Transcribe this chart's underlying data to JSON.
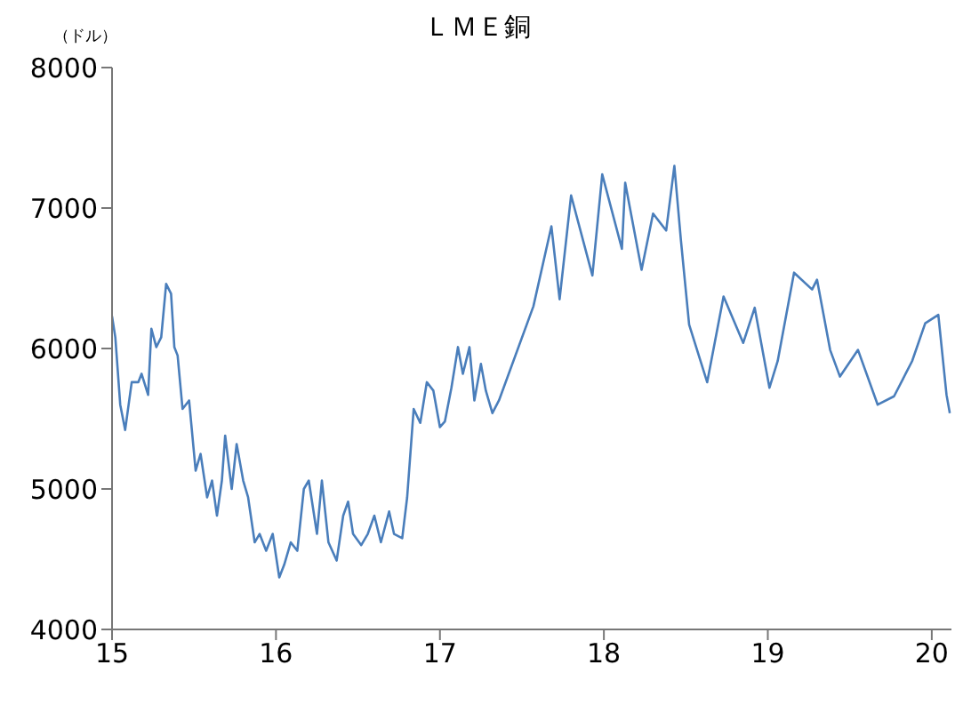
{
  "chart_data": {
    "type": "line",
    "title": "ＬＭＥ銅",
    "ylabel": "（ドル）",
    "x": [
      15.0,
      15.02,
      15.05,
      15.08,
      15.12,
      15.16,
      15.18,
      15.22,
      15.24,
      15.27,
      15.3,
      15.33,
      15.36,
      15.38,
      15.4,
      15.43,
      15.47,
      15.51,
      15.54,
      15.58,
      15.61,
      15.64,
      15.67,
      15.69,
      15.73,
      15.76,
      15.8,
      15.83,
      15.87,
      15.9,
      15.94,
      15.98,
      16.02,
      16.05,
      16.09,
      16.13,
      16.17,
      16.2,
      16.25,
      16.28,
      16.32,
      16.37,
      16.41,
      16.44,
      16.47,
      16.52,
      16.56,
      16.6,
      16.64,
      16.69,
      16.72,
      16.77,
      16.8,
      16.84,
      16.88,
      16.92,
      16.96,
      17.0,
      17.03,
      17.07,
      17.11,
      17.14,
      17.18,
      17.21,
      17.25,
      17.28,
      17.32,
      17.36,
      17.57,
      17.68,
      17.73,
      17.8,
      17.93,
      17.99,
      18.11,
      18.13,
      18.23,
      18.3,
      18.38,
      18.43,
      18.47,
      18.52,
      18.63,
      18.73,
      18.85,
      18.92,
      19.01,
      19.06,
      19.16,
      19.27,
      19.3,
      19.38,
      19.44,
      19.55,
      19.67,
      19.77,
      19.88,
      19.96,
      20.04,
      20.09,
      20.11
    ],
    "series": [
      {
        "color": "#4a7ebb",
        "values": [
          6230,
          6080,
          5600,
          5420,
          5760,
          5760,
          5820,
          5670,
          6140,
          6010,
          6080,
          6460,
          6390,
          6010,
          5950,
          5570,
          5630,
          5130,
          5250,
          4940,
          5060,
          4810,
          5060,
          5380,
          5000,
          5320,
          5060,
          4940,
          4620,
          4680,
          4560,
          4680,
          4370,
          4460,
          4620,
          4560,
          5000,
          5060,
          4680,
          5060,
          4620,
          4490,
          4810,
          4910,
          4680,
          4600,
          4680,
          4810,
          4620,
          4840,
          4680,
          4650,
          4940,
          5570,
          5470,
          5760,
          5700,
          5440,
          5480,
          5720,
          6010,
          5820,
          6010,
          5630,
          5890,
          5700,
          5540,
          5630,
          6300,
          6870,
          6350,
          7090,
          6520,
          7240,
          6710,
          7180,
          6560,
          6960,
          6840,
          7300,
          6770,
          6170,
          5760,
          6370,
          6040,
          6290,
          5720,
          5910,
          6540,
          6420,
          6490,
          5990,
          5800,
          5990,
          5600,
          5660,
          5910,
          6180,
          6240,
          5670,
          5540
        ]
      }
    ],
    "xlim": [
      15,
      20.12
    ],
    "xticks": [
      15,
      16,
      17,
      18,
      19,
      20
    ],
    "ylim": [
      4000,
      8000
    ],
    "yticks": [
      4000,
      5000,
      6000,
      7000,
      8000
    ],
    "grid": false,
    "legend": false,
    "marker": "none",
    "line_style": "solid"
  }
}
